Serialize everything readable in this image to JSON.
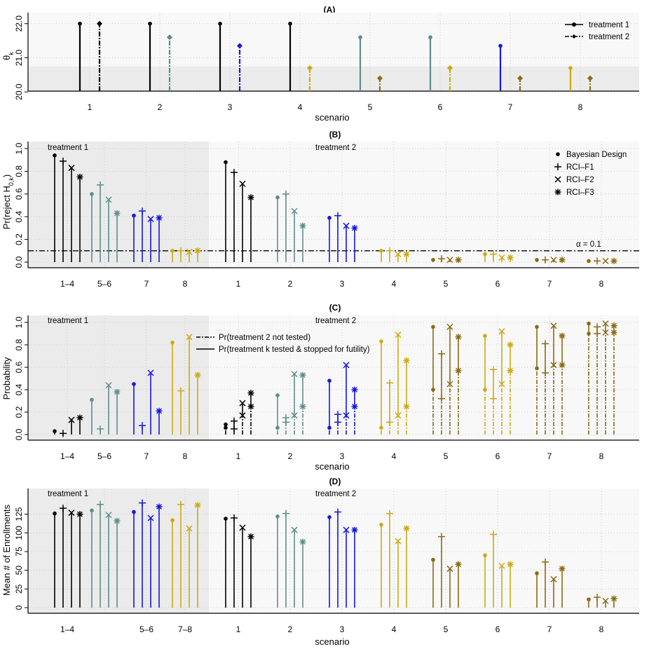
{
  "colors": {
    "black": "#000000",
    "teal": "#5e8c8c",
    "blue": "#1515e6",
    "gold": "#ccaa10",
    "olive": "#8a6b10",
    "band": "#ebebeb",
    "bg": "#f8f8f8"
  },
  "chart_data": [
    {
      "id": "A",
      "type": "lollipop",
      "title": "(A)",
      "xlabel": "scenario",
      "ylabel": "θ_k",
      "ylim": [
        19.9,
        22.2
      ],
      "yticks": [
        "20.0",
        "21.0",
        "22.0"
      ],
      "ytick_values": [
        20.0,
        21.0,
        22.0
      ],
      "categories": [
        "1",
        "2",
        "3",
        "4",
        "5",
        "6",
        "7",
        "8"
      ],
      "legend": [
        "treatment 1",
        "treatment 2"
      ],
      "legend_position": "top-right",
      "treatment1": {
        "values": [
          22.0,
          22.0,
          22.0,
          22.0,
          21.6,
          21.6,
          21.35,
          20.7
        ],
        "colors": [
          "black",
          "black",
          "black",
          "black",
          "teal",
          "teal",
          "blue",
          "gold"
        ]
      },
      "treatment2": {
        "values": [
          22.0,
          21.6,
          21.35,
          20.7,
          20.4,
          20.7,
          20.4,
          20.4
        ],
        "colors": [
          "black",
          "teal",
          "blue",
          "gold",
          "olive",
          "gold",
          "olive",
          "olive"
        ]
      }
    },
    {
      "id": "B",
      "type": "lollipop",
      "title": "(B)",
      "xlabel": "scenario",
      "ylabel": "Pr(reject H_0,k)",
      "ylim": [
        0,
        1.0
      ],
      "yticks": [
        "0.0",
        "0.2",
        "0.4",
        "0.6",
        "0.8",
        "1.0"
      ],
      "ytick_values": [
        0,
        0.2,
        0.4,
        0.6,
        0.8,
        1.0
      ],
      "panel_labels": [
        "treatment 1",
        "treatment 2"
      ],
      "legend": [
        "Bayesian Design",
        "RCI–F1",
        "RCI–F2",
        "RCI–F3"
      ],
      "legend_position": "top-right",
      "reference_line": {
        "value": 0.1,
        "label": "α = 0.1"
      },
      "groups": [
        {
          "label": "1–4",
          "color": "black",
          "values": [
            0.94,
            0.89,
            0.83,
            0.75
          ]
        },
        {
          "label": "5–6",
          "color": "teal",
          "values": [
            0.6,
            0.68,
            0.55,
            0.43
          ]
        },
        {
          "label": "7",
          "color": "blue",
          "values": [
            0.41,
            0.45,
            0.38,
            0.39
          ]
        },
        {
          "label": "8",
          "color": "gold",
          "values": [
            0.1,
            0.1,
            0.09,
            0.1
          ]
        },
        {
          "label": "1",
          "color": "black",
          "values": [
            0.88,
            0.79,
            0.69,
            0.57
          ]
        },
        {
          "label": "2",
          "color": "teal",
          "values": [
            0.57,
            0.6,
            0.45,
            0.32
          ]
        },
        {
          "label": "3",
          "color": "blue",
          "values": [
            0.39,
            0.41,
            0.32,
            0.3
          ]
        },
        {
          "label": "4",
          "color": "gold",
          "values": [
            0.1,
            0.1,
            0.07,
            0.07
          ]
        },
        {
          "label": "5",
          "color": "olive",
          "values": [
            0.02,
            0.03,
            0.02,
            0.02
          ]
        },
        {
          "label": "6",
          "color": "gold",
          "values": [
            0.07,
            0.07,
            0.04,
            0.04
          ]
        },
        {
          "label": "7",
          "color": "olive",
          "values": [
            0.02,
            0.02,
            0.02,
            0.02
          ]
        },
        {
          "label": "8",
          "color": "olive",
          "values": [
            0.01,
            0.01,
            0.01,
            0.01
          ]
        }
      ]
    },
    {
      "id": "C",
      "type": "lollipop",
      "title": "(C)",
      "xlabel": "scenario",
      "ylabel": "Probability",
      "ylim": [
        0,
        1.0
      ],
      "yticks": [
        "0.0",
        "0.2",
        "0.4",
        "0.6",
        "0.8",
        "1.0"
      ],
      "ytick_values": [
        0,
        0.2,
        0.4,
        0.6,
        0.8,
        1.0
      ],
      "panel_labels": [
        "treatment 1",
        "treatment 2"
      ],
      "legend": [
        "Pr(treatment 2 not tested)",
        "Pr(treatment k tested & stopped for futility)"
      ],
      "legend_position": "top-center",
      "groups": [
        {
          "label": "1–4",
          "color": "black",
          "values": [
            0.03,
            0.01,
            0.13,
            0.15
          ]
        },
        {
          "label": "5–6",
          "color": "teal",
          "values": [
            0.31,
            0.05,
            0.44,
            0.38
          ]
        },
        {
          "label": "7",
          "color": "blue",
          "values": [
            0.45,
            0.08,
            0.55,
            0.21
          ]
        },
        {
          "label": "8",
          "color": "gold",
          "values": [
            0.82,
            0.39,
            0.87,
            0.53
          ]
        },
        {
          "label": "1",
          "color": "black",
          "values": [
            0.09,
            0.12,
            0.28,
            0.37
          ],
          "not_tested": [
            0.06,
            0.05,
            0.17,
            0.25
          ]
        },
        {
          "label": "2",
          "color": "teal",
          "values": [
            0.35,
            0.15,
            0.54,
            0.53
          ],
          "not_tested": [
            0.06,
            0.11,
            0.17,
            0.25
          ]
        },
        {
          "label": "3",
          "color": "blue",
          "values": [
            0.48,
            0.18,
            0.62,
            0.4
          ],
          "not_tested": [
            0.06,
            0.11,
            0.17,
            0.25
          ]
        },
        {
          "label": "4",
          "color": "gold",
          "values": [
            0.83,
            0.46,
            0.89,
            0.66
          ],
          "not_tested": [
            0.06,
            0.11,
            0.17,
            0.25
          ]
        },
        {
          "label": "5",
          "color": "olive",
          "values": [
            0.96,
            0.72,
            0.96,
            0.87
          ],
          "not_tested": [
            0.4,
            0.32,
            0.45,
            0.57
          ]
        },
        {
          "label": "6",
          "color": "gold",
          "values": [
            0.88,
            0.58,
            0.92,
            0.8
          ],
          "not_tested": [
            0.4,
            0.32,
            0.45,
            0.57
          ]
        },
        {
          "label": "7",
          "color": "olive",
          "values": [
            0.96,
            0.81,
            0.97,
            0.88
          ],
          "not_tested": [
            0.59,
            0.55,
            0.62,
            0.62
          ]
        },
        {
          "label": "8",
          "color": "olive",
          "values": [
            0.99,
            0.96,
            0.99,
            0.97
          ],
          "not_tested": [
            0.9,
            0.9,
            0.91,
            0.91
          ]
        }
      ]
    },
    {
      "id": "D",
      "type": "lollipop",
      "title": "(D)",
      "xlabel": "scenario",
      "ylabel": "Mean # of Enrollments",
      "ylim": [
        0,
        150
      ],
      "yticks": [
        "0",
        "25",
        "50",
        "75",
        "100",
        "125"
      ],
      "ytick_values": [
        0,
        25,
        50,
        75,
        100,
        125
      ],
      "panel_labels": [
        "treatment 1",
        "treatment 2"
      ],
      "groups": [
        {
          "label": "1–4",
          "color": "black",
          "values": [
            126,
            133,
            127,
            125
          ]
        },
        {
          "label": "",
          "color": "teal",
          "values": [
            130,
            138,
            124,
            116
          ]
        },
        {
          "label": "5–6",
          "color": "blue",
          "values": [
            128,
            140,
            120,
            135
          ]
        },
        {
          "label": "7–8",
          "color": "gold",
          "values": [
            117,
            138,
            106,
            137
          ]
        },
        {
          "label": "1",
          "color": "black",
          "values": [
            119,
            120,
            107,
            95
          ]
        },
        {
          "label": "2",
          "color": "teal",
          "values": [
            122,
            126,
            104,
            88
          ]
        },
        {
          "label": "3",
          "color": "blue",
          "values": [
            121,
            128,
            104,
            104
          ]
        },
        {
          "label": "4",
          "color": "gold",
          "values": [
            111,
            126,
            89,
            106
          ]
        },
        {
          "label": "5",
          "color": "olive",
          "values": [
            64,
            95,
            52,
            58
          ]
        },
        {
          "label": "6",
          "color": "gold",
          "values": [
            70,
            98,
            56,
            58
          ]
        },
        {
          "label": "7",
          "color": "olive",
          "values": [
            46,
            61,
            38,
            52
          ]
        },
        {
          "label": "8",
          "color": "olive",
          "values": [
            11,
            14,
            9,
            12
          ]
        }
      ]
    }
  ]
}
